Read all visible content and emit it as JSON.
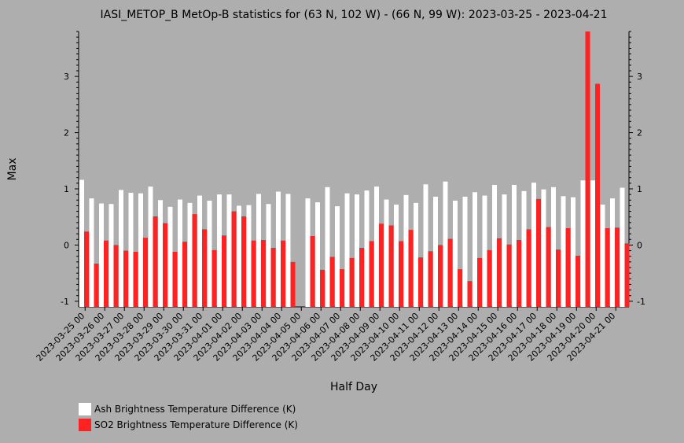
{
  "chart_data": {
    "type": "bar",
    "title": "IASI_METOP_B MetOp-B statistics for (63 N, 102 W) - (66 N, 99 W): 2023-03-25 - 2023-04-21",
    "xlabel": "Half Day",
    "ylabel": "Max",
    "ylim": [
      -1.1,
      3.8
    ],
    "yticks": [
      -1,
      0,
      1,
      2,
      3
    ],
    "x_tick_labels": [
      "2023-03-25 00",
      "2023-03-26 00",
      "2023-03-27 00",
      "2023-03-28 00",
      "2023-03-29 00",
      "2023-03-30 00",
      "2023-03-31 00",
      "2023-04-01 00",
      "2023-04-02 00",
      "2023-04-03 00",
      "2023-04-04 00",
      "2023-04-05 00",
      "2023-04-06 00",
      "2023-04-07 00",
      "2023-04-08 00",
      "2023-04-09 00",
      "2023-04-10 00",
      "2023-04-11 00",
      "2023-04-12 00",
      "2023-04-13 00",
      "2023-04-14 00",
      "2023-04-15 00",
      "2023-04-16 00",
      "2023-04-17 00",
      "2023-04-18 00",
      "2023-04-19 00",
      "2023-04-20 00",
      "2023-04-21 00"
    ],
    "series": [
      {
        "name": "Ash Brightness Temperature Difference (K)",
        "color": "#ffffff",
        "values": [
          1.16,
          0.83,
          0.74,
          0.73,
          0.98,
          0.93,
          0.92,
          1.04,
          0.8,
          0.68,
          0.81,
          0.75,
          0.88,
          0.79,
          0.9,
          0.9,
          0.7,
          0.71,
          0.91,
          0.73,
          0.95,
          0.91,
          null,
          0.83,
          0.76,
          1.03,
          0.69,
          0.92,
          0.9,
          0.97,
          1.04,
          0.81,
          0.72,
          0.89,
          0.75,
          1.08,
          0.86,
          1.13,
          0.79,
          0.86,
          0.94,
          0.88,
          1.07,
          0.9,
          1.07,
          0.96,
          1.11,
          0.99,
          1.03,
          0.87,
          0.85,
          1.15,
          1.15,
          0.72,
          0.83,
          1.02
        ]
      },
      {
        "name": "SO2 Brightness Temperature Difference (K)",
        "color": "#ff2222",
        "values": [
          0.24,
          -0.33,
          0.08,
          0.0,
          -0.1,
          -0.12,
          0.13,
          0.51,
          0.39,
          -0.12,
          0.06,
          0.55,
          0.28,
          -0.09,
          0.17,
          0.6,
          0.51,
          0.08,
          0.09,
          -0.05,
          0.08,
          -0.3,
          null,
          0.16,
          -0.44,
          -0.21,
          -0.43,
          -0.23,
          -0.05,
          0.07,
          0.38,
          0.35,
          0.07,
          0.27,
          -0.22,
          -0.11,
          0.0,
          0.11,
          -0.43,
          -0.64,
          -0.23,
          -0.09,
          0.12,
          0.01,
          0.09,
          0.28,
          0.82,
          0.32,
          -0.08,
          0.3,
          -0.19,
          3.8,
          2.87,
          0.3,
          0.31,
          0.03
        ]
      }
    ],
    "legend_position": "bottom-left"
  }
}
